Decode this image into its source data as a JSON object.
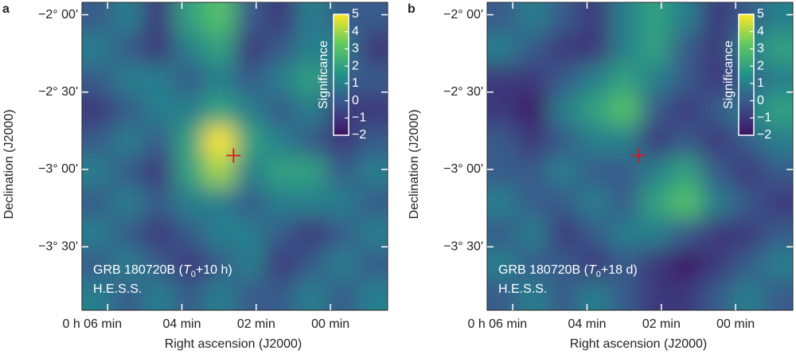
{
  "chart_data": [
    {
      "type": "heatmap",
      "label": "a",
      "xlabel": "Right ascension (J2000)",
      "ylabel": "Declination (J2000)",
      "xlim": [
        6.69,
        -1.54
      ],
      "ylim": [
        -3.91,
        -1.92
      ],
      "xticks": [
        {
          "value": 6,
          "label": "0 h 06 min"
        },
        {
          "value": 4,
          "label": "04 min"
        },
        {
          "value": 2,
          "label": "02 min"
        },
        {
          "value": 0,
          "label": "00 min"
        }
      ],
      "yticks": [
        {
          "value": -2,
          "label": "−2° 00'"
        },
        {
          "value": -2.5,
          "label": "−2° 30'"
        },
        {
          "value": -3,
          "label": "−3° 00'"
        },
        {
          "value": -3.5,
          "label": "−3° 30'"
        }
      ],
      "colorbar_label": "Significance",
      "clim": [
        -2,
        5
      ],
      "cticks": [
        {
          "value": 5,
          "label": "5"
        },
        {
          "value": 4,
          "label": "4"
        },
        {
          "value": 3,
          "label": "3"
        },
        {
          "value": 2,
          "label": "2"
        },
        {
          "value": 1,
          "label": "1"
        },
        {
          "value": 0,
          "label": "0"
        },
        {
          "value": -1,
          "label": "−1"
        },
        {
          "value": -2,
          "label": "−2"
        }
      ],
      "colormap": [
        "#3d1466",
        "#3b528b",
        "#21918c",
        "#5ec962",
        "#fde725"
      ],
      "marker": {
        "x": 2.61,
        "y": -2.91,
        "color": "#d7191c"
      },
      "annotation": [
        "GRB 180720B (",
        "T",
        "0",
        "+10 h)"
      ],
      "instrument": "H.E.S.S.",
      "values": [
        [
          0,
          1,
          -1,
          2,
          3,
          0,
          -1,
          1,
          0,
          0
        ],
        [
          1,
          0,
          -1,
          1,
          2,
          -1,
          0,
          1,
          1,
          -1
        ],
        [
          0,
          1,
          1,
          0,
          1,
          0,
          1,
          2,
          0,
          0
        ],
        [
          -1,
          0,
          1,
          1,
          2,
          1,
          0,
          1,
          -1,
          -1
        ],
        [
          0,
          1,
          0,
          2,
          5,
          2,
          1,
          0,
          -1,
          0
        ],
        [
          1,
          0,
          -1,
          2,
          4,
          1,
          2,
          2,
          0,
          1
        ],
        [
          0,
          1,
          0,
          1,
          1,
          0,
          1,
          1,
          1,
          0
        ],
        [
          1,
          0,
          -1,
          0,
          1,
          1,
          0,
          -1,
          0,
          1
        ],
        [
          0,
          1,
          0,
          -1,
          0,
          1,
          -1,
          0,
          1,
          0
        ],
        [
          1,
          0,
          1,
          0,
          1,
          0,
          0,
          1,
          0,
          1
        ]
      ]
    },
    {
      "type": "heatmap",
      "label": "b",
      "xlabel": "Right ascension (J2000)",
      "ylabel": "Declination (J2000)",
      "xlim": [
        6.69,
        -1.54
      ],
      "ylim": [
        -3.91,
        -1.92
      ],
      "xticks": [
        {
          "value": 6,
          "label": "0 h 06 min"
        },
        {
          "value": 4,
          "label": "04 min"
        },
        {
          "value": 2,
          "label": "02 min"
        },
        {
          "value": 0,
          "label": "00 min"
        }
      ],
      "yticks": [
        {
          "value": -2,
          "label": "−2° 00'"
        },
        {
          "value": -2.5,
          "label": "−2° 30'"
        },
        {
          "value": -3,
          "label": "−3° 00'"
        },
        {
          "value": -3.5,
          "label": "−3° 30'"
        }
      ],
      "colorbar_label": "Significance",
      "clim": [
        -2,
        5
      ],
      "cticks": [
        {
          "value": 5,
          "label": "5"
        },
        {
          "value": 4,
          "label": "4"
        },
        {
          "value": 3,
          "label": "3"
        },
        {
          "value": 2,
          "label": "2"
        },
        {
          "value": 1,
          "label": "1"
        },
        {
          "value": 0,
          "label": "0"
        },
        {
          "value": -1,
          "label": "−1"
        },
        {
          "value": -2,
          "label": "−2"
        }
      ],
      "colormap": [
        "#3d1466",
        "#3b528b",
        "#21918c",
        "#5ec962",
        "#fde725"
      ],
      "marker": {
        "x": 2.61,
        "y": -2.91,
        "color": "#d7191c"
      },
      "annotation": [
        "GRB 180720B (",
        "T",
        "0",
        "+18 d)"
      ],
      "instrument": "H.E.S.S.",
      "values": [
        [
          0,
          1,
          0,
          -1,
          1,
          2,
          1,
          -1,
          0,
          1
        ],
        [
          1,
          0,
          -1,
          -1,
          1,
          2,
          0,
          -1,
          1,
          2
        ],
        [
          -1,
          -1,
          0,
          1,
          2,
          1,
          0,
          -1,
          0,
          1
        ],
        [
          -1,
          -2,
          1,
          2,
          3,
          0,
          -1,
          0,
          1,
          2
        ],
        [
          0,
          -1,
          0,
          1,
          1,
          -1,
          0,
          -1,
          0,
          1
        ],
        [
          0,
          0,
          1,
          0,
          0,
          1,
          2,
          0,
          -1,
          0
        ],
        [
          1,
          0,
          0,
          1,
          0,
          2,
          3,
          1,
          0,
          -1
        ],
        [
          0,
          1,
          -1,
          0,
          1,
          1,
          0,
          -1,
          -1,
          0
        ],
        [
          1,
          0,
          0,
          -1,
          0,
          -1,
          -2,
          -1,
          0,
          1
        ],
        [
          0,
          1,
          0,
          1,
          0,
          -1,
          -1,
          0,
          1,
          0
        ]
      ]
    }
  ]
}
